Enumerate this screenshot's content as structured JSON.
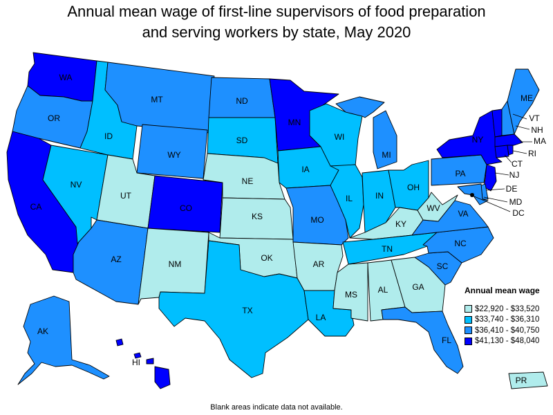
{
  "title_line1": "Annual mean wage of first-line supervisors of food preparation",
  "title_line2": "and serving workers by state, May 2020",
  "legend": {
    "title": "Annual mean wage",
    "bins": [
      {
        "label": "$22,920 - $33,520",
        "color": "#b0ecec"
      },
      {
        "label": "$33,740 - $36,310",
        "color": "#00bfff"
      },
      {
        "label": "$36,410 - $40,750",
        "color": "#1e90ff"
      },
      {
        "label": "$41,130 - $48,040",
        "color": "#0000ff"
      }
    ]
  },
  "note": "Blank areas indicate data not available.",
  "states": {
    "WA": 3,
    "OR": 2,
    "CA": 3,
    "NV": 1,
    "ID": 1,
    "MT": 2,
    "WY": 2,
    "UT": 0,
    "AZ": 2,
    "CO": 3,
    "NM": 0,
    "ND": 2,
    "SD": 1,
    "NE": 0,
    "KS": 0,
    "OK": 0,
    "TX": 1,
    "MN": 3,
    "IA": 1,
    "MO": 2,
    "AR": 0,
    "LA": 1,
    "WI": 1,
    "IL": 1,
    "MI": 2,
    "IN": 1,
    "OH": 1,
    "KY": 0,
    "TN": 1,
    "MS": 0,
    "AL": 0,
    "GA": 0,
    "FL": 2,
    "SC": 2,
    "NC": 2,
    "VA": 2,
    "WV": 0,
    "PA": 2,
    "NY": 3,
    "NJ": 3,
    "DE": 2,
    "MD": 2,
    "DC": 3,
    "VT": 3,
    "NH": 2,
    "ME": 2,
    "MA": 3,
    "RI": 3,
    "CT": 3,
    "AK": 2,
    "HI": 3,
    "PR": 0
  }
}
